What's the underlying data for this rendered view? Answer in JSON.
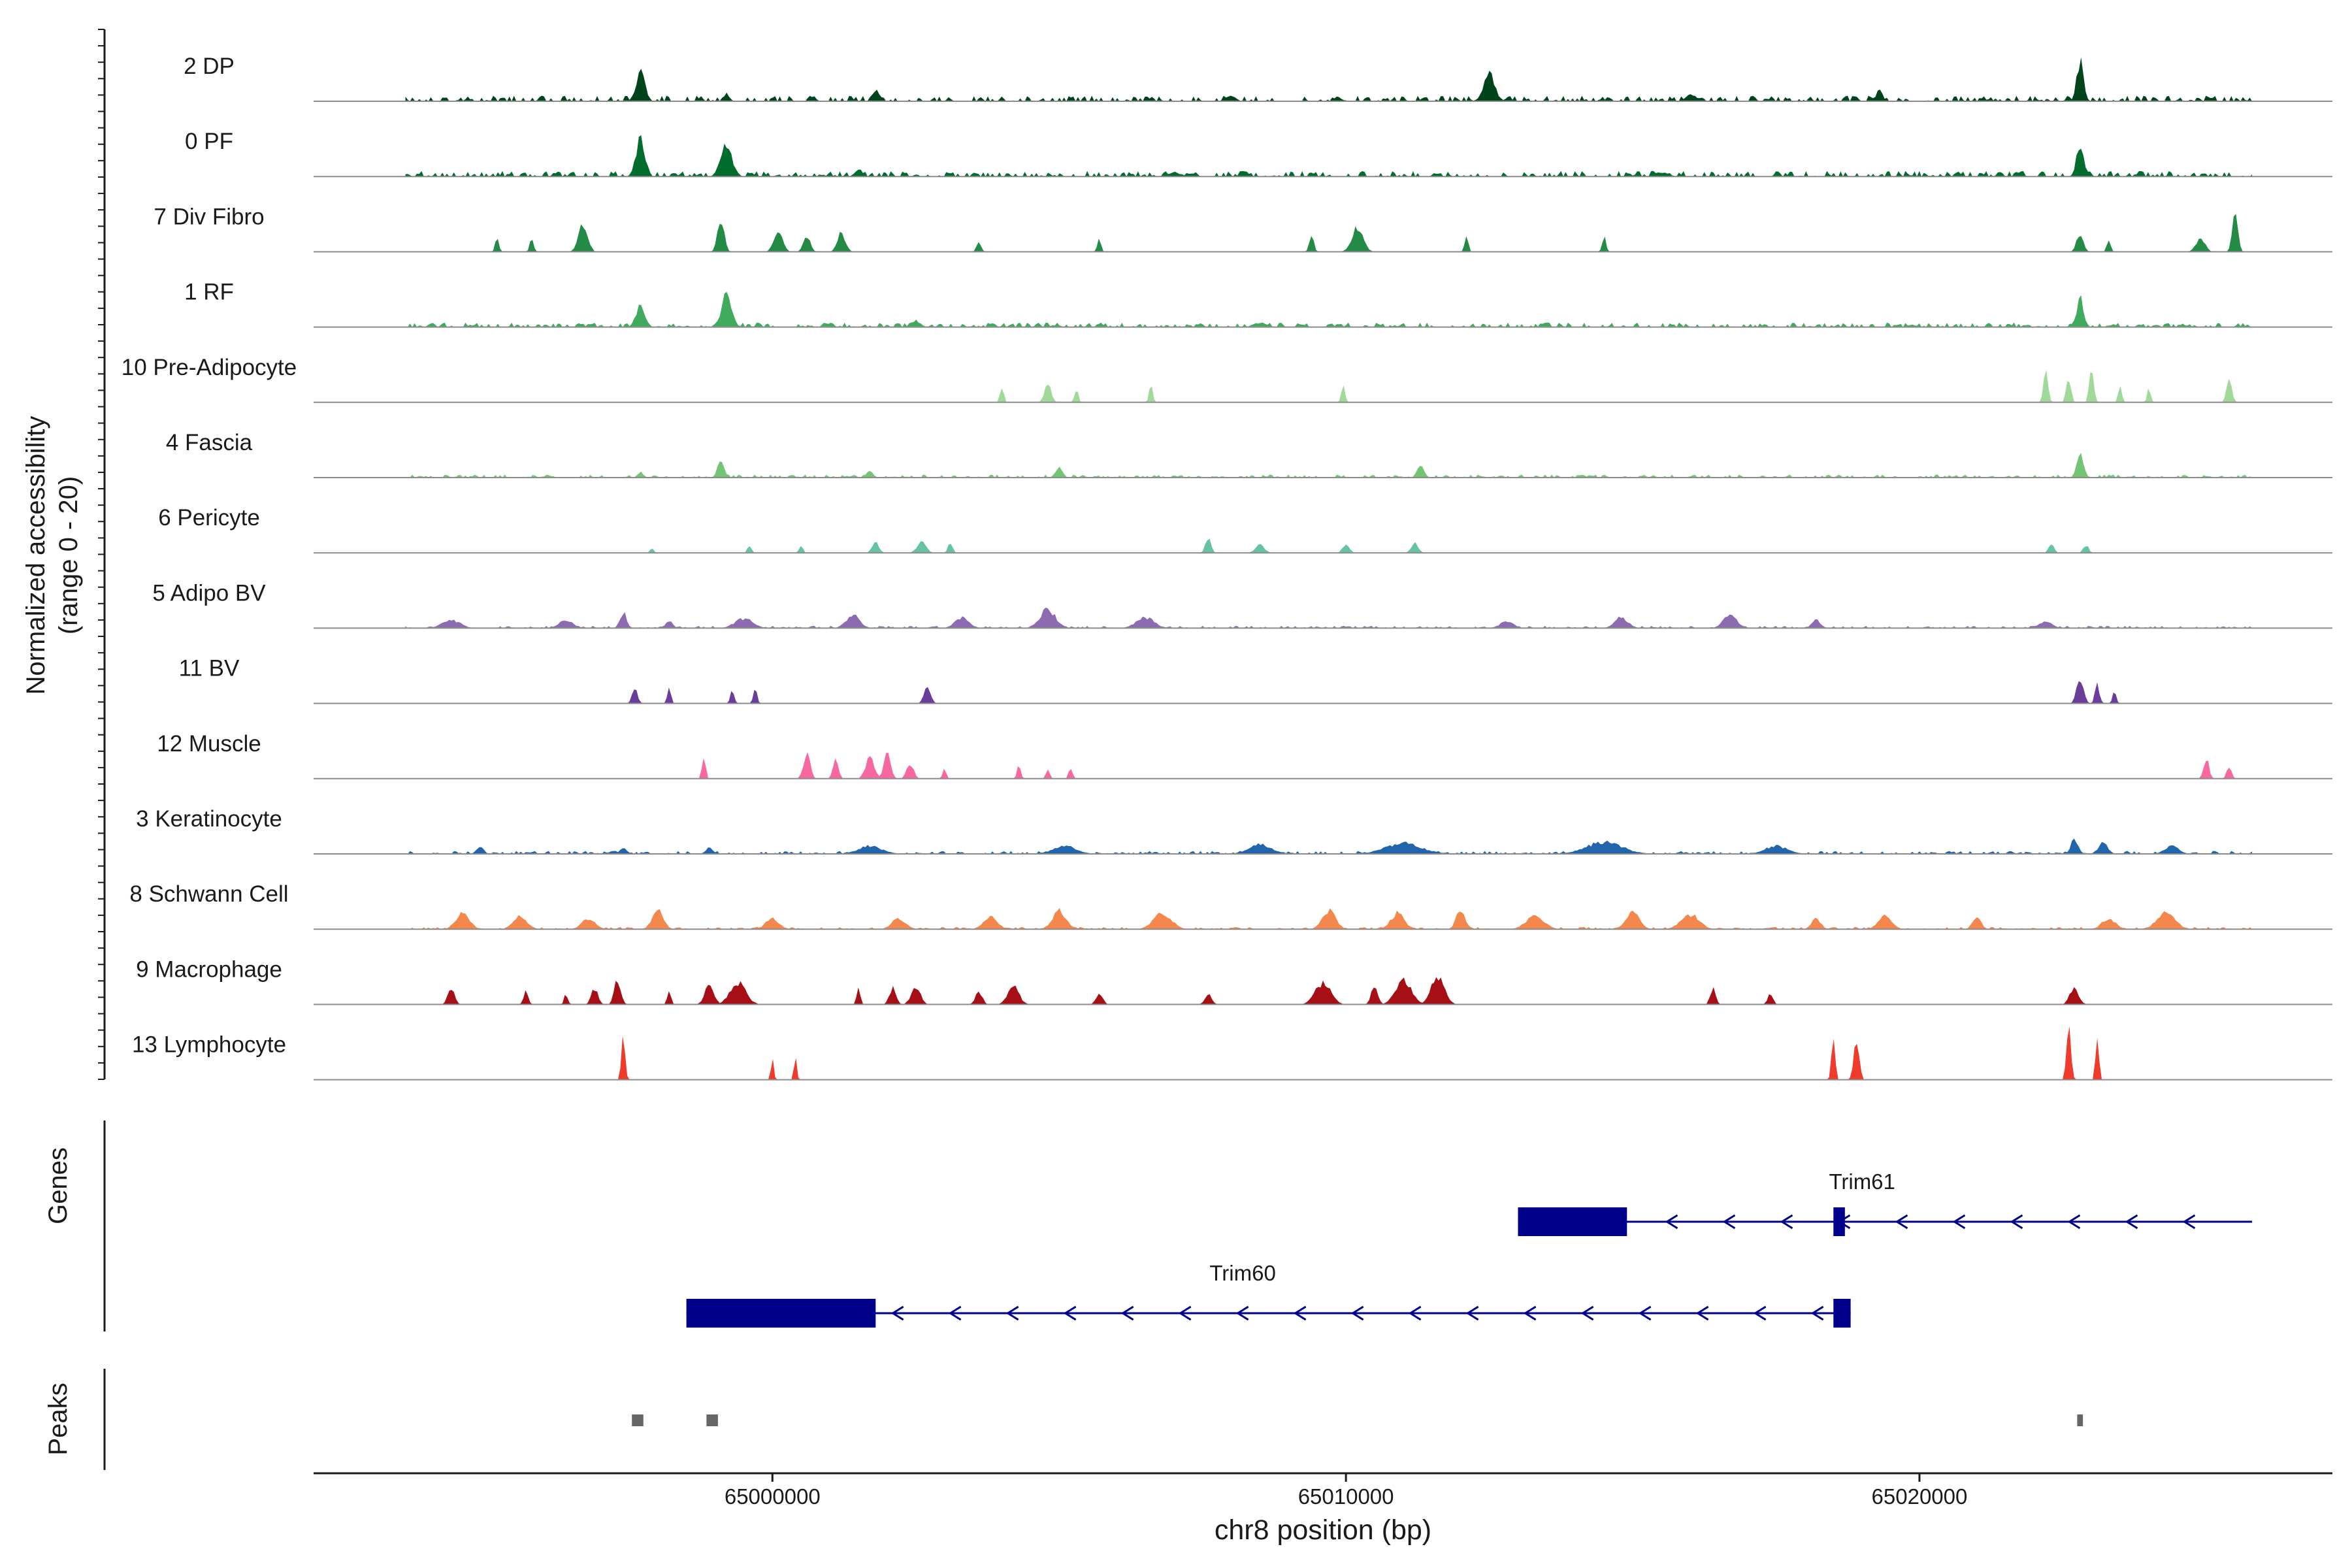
{
  "chart_data": {
    "type": "area",
    "title": "",
    "y_axis_label_line1": "Normalized accessibility",
    "y_axis_label_line2": "(range 0 - 20)",
    "y_range": [
      0,
      20
    ],
    "x_axis_label": "chr8 position (bp)",
    "x_range": [
      64992000,
      65027200
    ],
    "x_ticks": [
      65000000,
      65010000,
      65020000
    ],
    "x_tick_labels": [
      "65000000",
      "65010000",
      "65020000"
    ],
    "track_start": 64993600,
    "track_end": 65025800,
    "tracks": [
      {
        "name": "2 DP",
        "color": "#00441b"
      },
      {
        "name": "0 PF",
        "color": "#006d2c"
      },
      {
        "name": "7 Div Fibro",
        "color": "#238b45"
      },
      {
        "name": "1 RF",
        "color": "#41ab5d"
      },
      {
        "name": "10 Pre-Adipocyte",
        "color": "#a1d99b"
      },
      {
        "name": "4 Fascia",
        "color": "#74c476"
      },
      {
        "name": "6 Pericyte",
        "color": "#66c2a4"
      },
      {
        "name": "5 Adipo BV",
        "color": "#8c6bb1"
      },
      {
        "name": "11 BV",
        "color": "#6a3d9a"
      },
      {
        "name": "12 Muscle",
        "color": "#f768a1"
      },
      {
        "name": "3 Keratinocyte",
        "color": "#2166ac"
      },
      {
        "name": "8 Schwann Cell",
        "color": "#f4874b"
      },
      {
        "name": "9 Macrophage",
        "color": "#a50f15"
      },
      {
        "name": "13 Lymphocyte",
        "color": "#ef3b2c"
      }
    ],
    "peak_sets": [
      {
        "track": 0,
        "baseline": 0.15,
        "peaks": [
          [
            64997700,
            0.55,
            200
          ],
          [
            65001800,
            0.2,
            150
          ],
          [
            65012500,
            0.5,
            250
          ],
          [
            65019300,
            0.2,
            150
          ],
          [
            65022800,
            0.75,
            150
          ],
          [
            64999200,
            0.15,
            120
          ],
          [
            65008000,
            0.1,
            200
          ],
          [
            65016000,
            0.12,
            200
          ]
        ]
      },
      {
        "track": 1,
        "baseline": 0.15,
        "peaks": [
          [
            64997700,
            0.7,
            200
          ],
          [
            64999200,
            0.6,
            250
          ],
          [
            65022800,
            0.65,
            150
          ],
          [
            65001500,
            0.15,
            150
          ],
          [
            65007000,
            0.08,
            300
          ],
          [
            65015500,
            0.08,
            300
          ]
        ]
      },
      {
        "track": 2,
        "sparse": true,
        "peaks": [
          [
            64995200,
            0.25,
            80
          ],
          [
            64995800,
            0.3,
            80
          ],
          [
            64996700,
            0.55,
            200
          ],
          [
            64999100,
            0.6,
            150
          ],
          [
            65000100,
            0.35,
            200
          ],
          [
            65000600,
            0.3,
            150
          ],
          [
            65001200,
            0.35,
            180
          ],
          [
            65003600,
            0.2,
            100
          ],
          [
            65005700,
            0.25,
            80
          ],
          [
            65009400,
            0.3,
            100
          ],
          [
            65010200,
            0.45,
            250
          ],
          [
            65012100,
            0.3,
            80
          ],
          [
            65014500,
            0.3,
            80
          ],
          [
            65022800,
            0.35,
            150
          ],
          [
            65023300,
            0.25,
            80
          ],
          [
            65024900,
            0.25,
            200
          ],
          [
            65025500,
            0.85,
            120
          ]
        ]
      },
      {
        "track": 3,
        "baseline": 0.12,
        "peaks": [
          [
            64997700,
            0.4,
            200
          ],
          [
            64999200,
            0.6,
            220
          ],
          [
            65022800,
            0.55,
            150
          ],
          [
            65002500,
            0.12,
            200
          ],
          [
            65008500,
            0.08,
            300
          ]
        ]
      },
      {
        "track": 4,
        "sparse": true,
        "peaks": [
          [
            65004000,
            0.3,
            80
          ],
          [
            65004800,
            0.35,
            150
          ],
          [
            65005300,
            0.25,
            80
          ],
          [
            65006600,
            0.3,
            80
          ],
          [
            65009950,
            0.35,
            80
          ],
          [
            65022200,
            0.65,
            100
          ],
          [
            65022600,
            0.5,
            100
          ],
          [
            65023000,
            0.6,
            100
          ],
          [
            65023500,
            0.3,
            80
          ],
          [
            65024000,
            0.25,
            80
          ],
          [
            65025400,
            0.4,
            120
          ]
        ]
      },
      {
        "track": 5,
        "baseline": 0.08,
        "peaks": [
          [
            64999100,
            0.3,
            150
          ],
          [
            65005000,
            0.2,
            150
          ],
          [
            65011300,
            0.25,
            150
          ],
          [
            65022800,
            0.5,
            150
          ],
          [
            64997700,
            0.12,
            100
          ],
          [
            65001700,
            0.12,
            150
          ]
        ]
      },
      {
        "track": 6,
        "sparse": true,
        "peaks": [
          [
            64997900,
            0.1,
            80
          ],
          [
            64999600,
            0.15,
            80
          ],
          [
            65000500,
            0.15,
            80
          ],
          [
            65001800,
            0.2,
            150
          ],
          [
            65002600,
            0.2,
            200
          ],
          [
            65003100,
            0.18,
            100
          ],
          [
            65007600,
            0.3,
            120
          ],
          [
            65008500,
            0.15,
            200
          ],
          [
            65010000,
            0.15,
            150
          ],
          [
            65011200,
            0.18,
            150
          ],
          [
            65022300,
            0.15,
            120
          ],
          [
            65022900,
            0.15,
            120
          ]
        ]
      },
      {
        "track": 7,
        "baseline": 0.06,
        "peaks": [
          [
            64994400,
            0.15,
            400
          ],
          [
            64996400,
            0.15,
            300
          ],
          [
            64997400,
            0.3,
            150
          ],
          [
            64998200,
            0.15,
            150
          ],
          [
            64999500,
            0.18,
            400
          ],
          [
            65001400,
            0.25,
            300
          ],
          [
            65003300,
            0.2,
            300
          ],
          [
            65004800,
            0.35,
            350
          ],
          [
            65006500,
            0.2,
            400
          ],
          [
            65012800,
            0.12,
            300
          ],
          [
            65014800,
            0.2,
            300
          ],
          [
            65016700,
            0.25,
            300
          ],
          [
            65018200,
            0.15,
            200
          ],
          [
            65022200,
            0.12,
            300
          ]
        ]
      },
      {
        "track": 8,
        "sparse": true,
        "peaks": [
          [
            64997600,
            0.3,
            120
          ],
          [
            64998200,
            0.3,
            80
          ],
          [
            64999300,
            0.28,
            80
          ],
          [
            64999700,
            0.3,
            80
          ],
          [
            65002700,
            0.28,
            150
          ],
          [
            65022800,
            0.45,
            150
          ],
          [
            65023100,
            0.35,
            100
          ],
          [
            65023400,
            0.22,
            80
          ]
        ]
      },
      {
        "track": 9,
        "sparse": true,
        "peaks": [
          [
            64998800,
            0.45,
            80
          ],
          [
            65000600,
            0.45,
            150
          ],
          [
            65001100,
            0.35,
            120
          ],
          [
            65001700,
            0.38,
            200
          ],
          [
            65002000,
            0.45,
            150
          ],
          [
            65002400,
            0.3,
            150
          ],
          [
            65003000,
            0.2,
            80
          ],
          [
            65004300,
            0.25,
            80
          ],
          [
            65004800,
            0.2,
            80
          ],
          [
            65005200,
            0.22,
            80
          ],
          [
            65025000,
            0.4,
            120
          ],
          [
            65025400,
            0.25,
            100
          ]
        ]
      },
      {
        "track": 10,
        "baseline": 0.08,
        "peaks": [
          [
            64994900,
            0.15,
            150
          ],
          [
            64997400,
            0.12,
            150
          ],
          [
            64998900,
            0.12,
            150
          ],
          [
            65001700,
            0.15,
            500
          ],
          [
            65005100,
            0.15,
            500
          ],
          [
            65008500,
            0.18,
            500
          ],
          [
            65011000,
            0.2,
            800
          ],
          [
            65014500,
            0.22,
            800
          ],
          [
            65017500,
            0.15,
            500
          ],
          [
            65022700,
            0.3,
            150
          ],
          [
            65023200,
            0.22,
            200
          ],
          [
            65024400,
            0.15,
            300
          ]
        ]
      },
      {
        "track": 11,
        "baseline": 0.06,
        "peaks": [
          [
            64994600,
            0.3,
            300
          ],
          [
            64995600,
            0.25,
            300
          ],
          [
            64996800,
            0.2,
            300
          ],
          [
            64998000,
            0.35,
            250
          ],
          [
            65000000,
            0.2,
            300
          ],
          [
            65002200,
            0.2,
            300
          ],
          [
            65003800,
            0.25,
            300
          ],
          [
            65005000,
            0.35,
            300
          ],
          [
            65006800,
            0.3,
            400
          ],
          [
            65009700,
            0.35,
            300
          ],
          [
            65010900,
            0.3,
            300
          ],
          [
            65012000,
            0.35,
            200
          ],
          [
            65013300,
            0.25,
            400
          ],
          [
            65015000,
            0.3,
            300
          ],
          [
            65016000,
            0.28,
            400
          ],
          [
            65018200,
            0.2,
            200
          ],
          [
            65019400,
            0.25,
            300
          ],
          [
            65021000,
            0.2,
            200
          ],
          [
            65023300,
            0.2,
            300
          ],
          [
            65024300,
            0.3,
            400
          ]
        ]
      },
      {
        "track": 12,
        "sparse": true,
        "peaks": [
          [
            64994400,
            0.3,
            150
          ],
          [
            64995700,
            0.25,
            100
          ],
          [
            64996400,
            0.2,
            80
          ],
          [
            64996900,
            0.3,
            150
          ],
          [
            64997300,
            0.45,
            150
          ],
          [
            64998200,
            0.3,
            80
          ],
          [
            64998900,
            0.35,
            200
          ],
          [
            64999400,
            0.4,
            350
          ],
          [
            65001500,
            0.3,
            80
          ],
          [
            65002100,
            0.3,
            150
          ],
          [
            65002500,
            0.35,
            200
          ],
          [
            65003600,
            0.25,
            150
          ],
          [
            65004200,
            0.35,
            250
          ],
          [
            65005700,
            0.2,
            150
          ],
          [
            65007600,
            0.2,
            150
          ],
          [
            65009600,
            0.4,
            350
          ],
          [
            65010500,
            0.35,
            150
          ],
          [
            65011000,
            0.45,
            350
          ],
          [
            65011600,
            0.5,
            300
          ],
          [
            65016400,
            0.3,
            120
          ],
          [
            65017400,
            0.2,
            120
          ],
          [
            65022700,
            0.3,
            200
          ]
        ]
      },
      {
        "track": 13,
        "sparse": true,
        "peaks": [
          [
            64997400,
            0.9,
            80
          ],
          [
            65000000,
            0.45,
            60
          ],
          [
            65000400,
            0.45,
            60
          ],
          [
            65018500,
            0.85,
            80
          ],
          [
            65018900,
            0.75,
            120
          ],
          [
            65022600,
            1.0,
            100
          ],
          [
            65023100,
            0.85,
            80
          ]
        ]
      }
    ],
    "genes": {
      "label": "Genes",
      "items": [
        {
          "name": "Trim61",
          "start": 65013000,
          "end": 65025800,
          "strand": "-",
          "exons": [
            [
              65013000,
              65014900
            ],
            [
              65018500,
              65018700
            ]
          ],
          "row": 0,
          "color": "#00008b"
        },
        {
          "name": "Trim60",
          "start": 64998500,
          "end": 65018800,
          "strand": "-",
          "exons": [
            [
              64998500,
              65001800
            ],
            [
              65018500,
              65018800
            ]
          ],
          "row": 1,
          "color": "#00008b"
        }
      ]
    },
    "peaks_track": {
      "label": "Peaks",
      "color": "#666666",
      "regions": [
        [
          64997550,
          64997750
        ],
        [
          64998850,
          64999050
        ],
        [
          65022750,
          65022850
        ]
      ]
    }
  }
}
